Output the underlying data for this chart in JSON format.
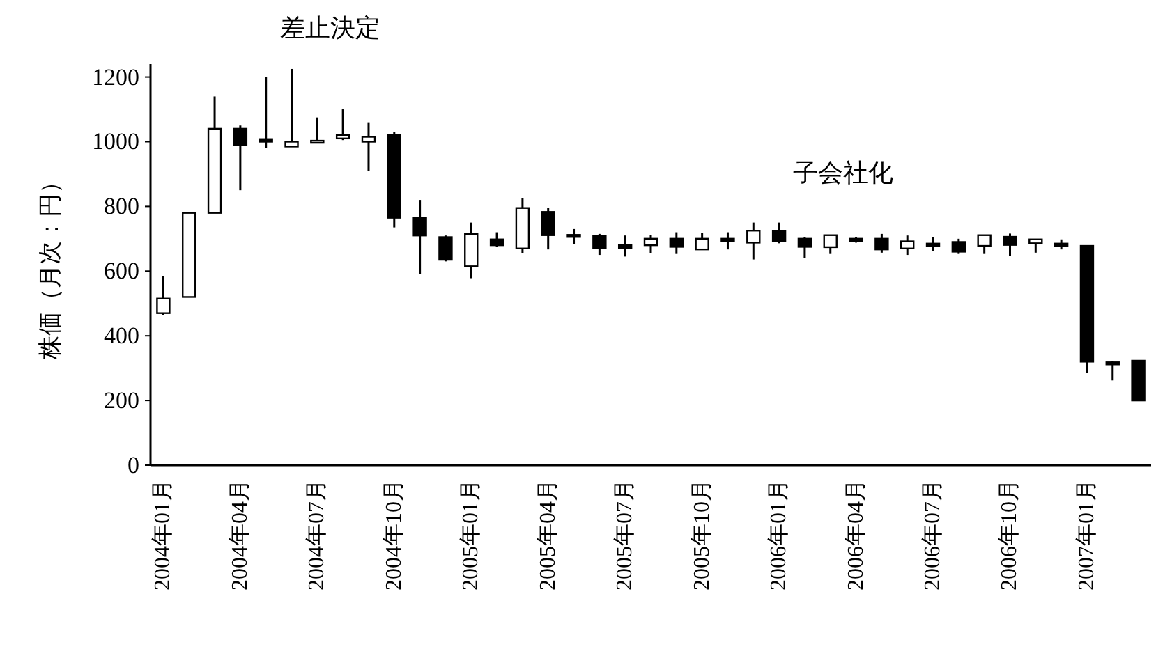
{
  "chart_data": {
    "type": "candlestick",
    "ylabel": "株価（月次：円）",
    "annotations": [
      "差止決定",
      "子会社化"
    ],
    "categories": [
      "2004年01月",
      null,
      null,
      "2004年04月",
      null,
      null,
      "2004年07月",
      null,
      null,
      "2004年10月",
      null,
      null,
      "2005年01月",
      null,
      null,
      "2005年04月",
      null,
      null,
      "2005年07月",
      null,
      null,
      "2005年10月",
      null,
      null,
      "2006年01月",
      null,
      null,
      "2006年04月",
      null,
      null,
      "2006年07月",
      null,
      null,
      "2006年10月",
      null,
      null,
      "2007年01月",
      null,
      null
    ],
    "ohlc": [
      [
        470,
        585,
        465,
        515
      ],
      [
        520,
        780,
        520,
        780
      ],
      [
        780,
        1140,
        780,
        1040
      ],
      [
        1040,
        1050,
        850,
        990
      ],
      [
        1008,
        1200,
        980,
        1000
      ],
      [
        985,
        1225,
        985,
        1000
      ],
      [
        1000,
        1075,
        998,
        1003
      ],
      [
        1010,
        1100,
        1005,
        1020
      ],
      [
        1000,
        1060,
        910,
        1015
      ],
      [
        1020,
        1030,
        735,
        765
      ],
      [
        765,
        820,
        590,
        710
      ],
      [
        705,
        710,
        630,
        635
      ],
      [
        615,
        750,
        578,
        715
      ],
      [
        698,
        720,
        675,
        680
      ],
      [
        670,
        825,
        655,
        795
      ],
      [
        783,
        796,
        667,
        711
      ],
      [
        712,
        730,
        683,
        708
      ],
      [
        708,
        715,
        650,
        671
      ],
      [
        680,
        710,
        645,
        672
      ],
      [
        680,
        712,
        655,
        700
      ],
      [
        700,
        720,
        653,
        675
      ],
      [
        667,
        717,
        667,
        700
      ],
      [
        695,
        720,
        667,
        700
      ],
      [
        688,
        750,
        636,
        725
      ],
      [
        725,
        750,
        686,
        693
      ],
      [
        700,
        705,
        640,
        675
      ],
      [
        674,
        711,
        653,
        711
      ],
      [
        700,
        706,
        688,
        697
      ],
      [
        700,
        715,
        657,
        667
      ],
      [
        670,
        710,
        650,
        692
      ],
      [
        685,
        706,
        662,
        682
      ],
      [
        690,
        700,
        653,
        660
      ],
      [
        678,
        711,
        653,
        711
      ],
      [
        706,
        716,
        648,
        681
      ],
      [
        686,
        698,
        657,
        698
      ],
      [
        685,
        698,
        667,
        682
      ],
      [
        678,
        680,
        285,
        320
      ],
      [
        318,
        322,
        262,
        314
      ],
      [
        323,
        323,
        200,
        200
      ]
    ],
    "ylim": [
      0,
      1240
    ],
    "yticks": [
      0,
      200,
      400,
      600,
      800,
      1000,
      1200
    ]
  }
}
